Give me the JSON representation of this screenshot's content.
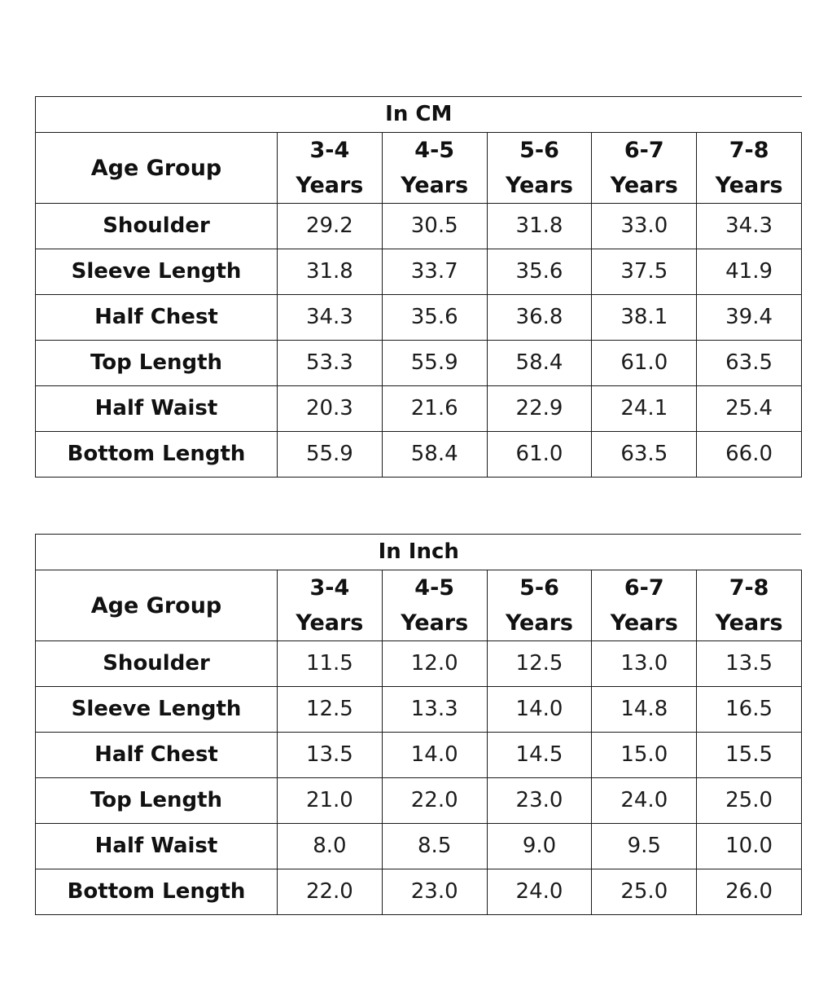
{
  "tables": [
    {
      "title": "In CM",
      "header_label": "Age Group",
      "columns": [
        {
          "range": "3-4",
          "unit": "Years"
        },
        {
          "range": "4-5",
          "unit": "Years"
        },
        {
          "range": "5-6",
          "unit": "Years"
        },
        {
          "range": "6-7",
          "unit": "Years"
        },
        {
          "range": "7-8",
          "unit": "Years"
        }
      ],
      "rows": [
        {
          "label": "Shoulder",
          "values": [
            "29.2",
            "30.5",
            "31.8",
            "33.0",
            "34.3"
          ]
        },
        {
          "label": "Sleeve Length",
          "values": [
            "31.8",
            "33.7",
            "35.6",
            "37.5",
            "41.9"
          ]
        },
        {
          "label": "Half Chest",
          "values": [
            "34.3",
            "35.6",
            "36.8",
            "38.1",
            "39.4"
          ]
        },
        {
          "label": "Top Length",
          "values": [
            "53.3",
            "55.9",
            "58.4",
            "61.0",
            "63.5"
          ]
        },
        {
          "label": "Half Waist",
          "values": [
            "20.3",
            "21.6",
            "22.9",
            "24.1",
            "25.4"
          ]
        },
        {
          "label": "Bottom Length",
          "values": [
            "55.9",
            "58.4",
            "61.0",
            "63.5",
            "66.0"
          ]
        }
      ]
    },
    {
      "title": "In Inch",
      "header_label": "Age Group",
      "columns": [
        {
          "range": "3-4",
          "unit": "Years"
        },
        {
          "range": "4-5",
          "unit": "Years"
        },
        {
          "range": "5-6",
          "unit": "Years"
        },
        {
          "range": "6-7",
          "unit": "Years"
        },
        {
          "range": "7-8",
          "unit": "Years"
        }
      ],
      "rows": [
        {
          "label": "Shoulder",
          "values": [
            "11.5",
            "12.0",
            "12.5",
            "13.0",
            "13.5"
          ]
        },
        {
          "label": "Sleeve Length",
          "values": [
            "12.5",
            "13.3",
            "14.0",
            "14.8",
            "16.5"
          ]
        },
        {
          "label": "Half Chest",
          "values": [
            "13.5",
            "14.0",
            "14.5",
            "15.0",
            "15.5"
          ]
        },
        {
          "label": "Top Length",
          "values": [
            "21.0",
            "22.0",
            "23.0",
            "24.0",
            "25.0"
          ]
        },
        {
          "label": "Half Waist",
          "values": [
            "8.0",
            "8.5",
            "9.0",
            "9.5",
            "10.0"
          ]
        },
        {
          "label": "Bottom Length",
          "values": [
            "22.0",
            "23.0",
            "24.0",
            "25.0",
            "26.0"
          ]
        }
      ]
    }
  ]
}
